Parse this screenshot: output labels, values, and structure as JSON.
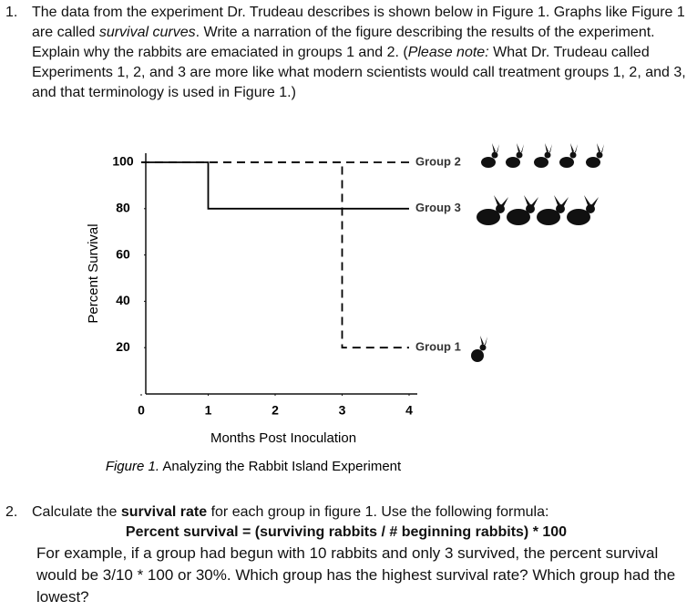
{
  "q1": {
    "number": "1.",
    "seg": [
      "The data from the experiment Dr. Trudeau describes is shown below in Figure 1. Graphs like Figure 1 are called ",
      "survival curves",
      ". Write a narration of the figure describing the results of the experiment. Explain why the rabbits are emaciated in groups 1 and 2. (",
      "Please note:",
      " What Dr. Trudeau called Experiments 1, 2, and 3 are more like what modern scientists would call treatment groups 1, 2, and 3, and that terminology is used in Figure 1.)"
    ]
  },
  "chart_data": {
    "type": "line",
    "xlabel": "Months Post Inoculation",
    "ylabel": "Percent Survival",
    "xlim": [
      0,
      4
    ],
    "ylim": [
      0,
      100
    ],
    "xticks": [
      0,
      1,
      2,
      3,
      4
    ],
    "yticks": [
      20,
      40,
      60,
      80,
      100
    ],
    "series": [
      {
        "name": "Group 2",
        "color": "#000000",
        "style": "dashed",
        "x": [
          0,
          4
        ],
        "values": [
          100,
          100
        ]
      },
      {
        "name": "Group 3",
        "color": "#000000",
        "style": "solid",
        "x": [
          0,
          1,
          1,
          4
        ],
        "values": [
          100,
          100,
          80,
          80
        ]
      },
      {
        "name": "Group 1",
        "color": "#000000",
        "style": "dashed",
        "x": [
          0,
          3,
          3,
          4
        ],
        "values": [
          100,
          100,
          20,
          20
        ]
      }
    ]
  },
  "figure_caption": {
    "label": "Figure 1.",
    "text": "Analyzing the Rabbit Island Experiment"
  },
  "q2": {
    "number": "2.",
    "intro": "Calculate the ",
    "term": "survival rate",
    "rest": " for each group in figure 1. Use the following formula:",
    "formula": "Percent survival = (surviving rabbits / # beginning rabbits) * 100",
    "example": "For example, if a group had begun with 10 rabbits and only 3 survived, the percent survival would be 3/10 * 100 or 30%. Which group has the highest survival rate? Which group had the lowest?"
  }
}
